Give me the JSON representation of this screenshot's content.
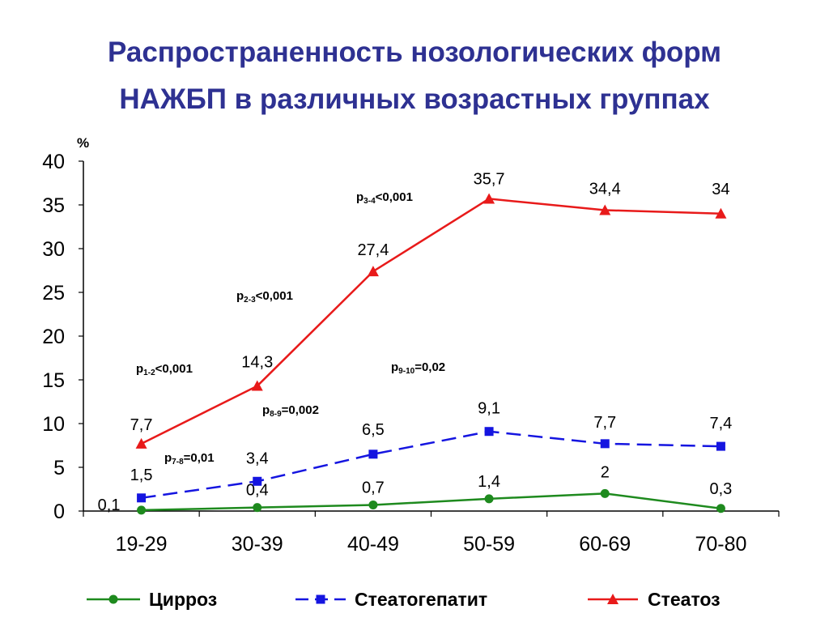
{
  "title_line1": "Распространенность нозологических форм",
  "title_line2": "НАЖБП в различных возрастных группах",
  "colors": {
    "title": "#2E3192",
    "cirrhosis": "#1E8A1E",
    "steatohepatitis": "#1515E0",
    "steatosis": "#E81A1A"
  },
  "chart_data": {
    "type": "line",
    "ylabel": "%",
    "ylim": [
      0,
      40
    ],
    "yticks": [
      "0",
      "5",
      "10",
      "15",
      "20",
      "25",
      "30",
      "35",
      "40"
    ],
    "categories": [
      "19-29",
      "30-39",
      "40-49",
      "50-59",
      "60-69",
      "70-80"
    ],
    "series": [
      {
        "name": "Цирроз",
        "marker": "circle",
        "dash": "solid",
        "values": [
          0.1,
          0.4,
          0.7,
          1.4,
          2,
          0.3
        ],
        "labels": [
          "0,1",
          "0,4",
          "0,7",
          "1,4",
          "2",
          "0,3"
        ]
      },
      {
        "name": "Стеатогепатит",
        "marker": "square",
        "dash": "dashed",
        "values": [
          1.5,
          3.4,
          6.5,
          9.1,
          7.7,
          7.4
        ],
        "labels": [
          "1,5",
          "3,4",
          "6,5",
          "9,1",
          "7,7",
          "7,4"
        ]
      },
      {
        "name": "Стеатоз",
        "marker": "triangle",
        "dash": "solid",
        "values": [
          7.7,
          14.3,
          27.4,
          35.7,
          34.4,
          34
        ],
        "labels": [
          "7,7",
          "14,3",
          "27,4",
          "35,7",
          "34,4",
          "34"
        ]
      }
    ],
    "annotations": [
      {
        "p": "p",
        "sub": "1-2",
        "rest": "<0,001"
      },
      {
        "p": "p",
        "sub": "2-3",
        "rest": "<0,001"
      },
      {
        "p": "p",
        "sub": "3-4",
        "rest": "<0,001"
      },
      {
        "p": "p",
        "sub": "7-8",
        "rest": "=0,01"
      },
      {
        "p": "p",
        "sub": "8-9",
        "rest": "=0,002"
      },
      {
        "p": "p",
        "sub": "9-10",
        "rest": "=0,02"
      }
    ],
    "legend_position": "bottom"
  }
}
